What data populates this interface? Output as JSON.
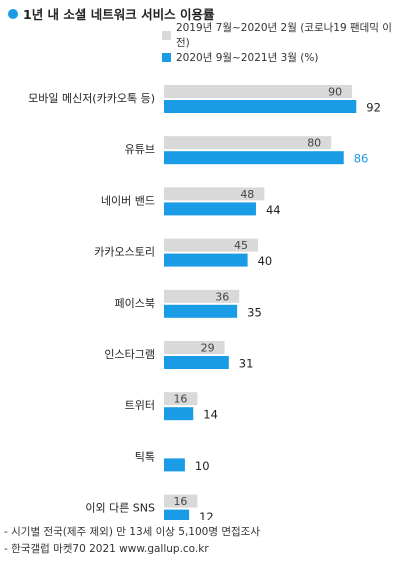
{
  "title": "1년 내 소셜 네트워크 서비스 이용률",
  "colors": {
    "accent": "#1a9be6",
    "previous": "#d9d9d9",
    "current": "#1a9be6",
    "current_label": "#1a9be6"
  },
  "chart_data": {
    "type": "bar",
    "orientation": "horizontal",
    "title": "1년 내 소셜 네트워크 서비스 이용률",
    "categories": [
      "모바일 메신저(카카오톡 등)",
      "유튜브",
      "네이버 밴드",
      "카카오스토리",
      "페이스북",
      "인스타그램",
      "트위터",
      "틱톡",
      "이외 다른 SNS"
    ],
    "series": [
      {
        "name": "2019년 7월~2020년 2월 (코로나19 팬데믹 이전)",
        "values": [
          90,
          80,
          48,
          45,
          36,
          29,
          16,
          null,
          16
        ]
      },
      {
        "name": "2020년 9월~2021년 3월 (%)",
        "values": [
          92,
          86,
          44,
          40,
          35,
          31,
          14,
          10,
          12
        ]
      }
    ],
    "highlight": {
      "series": 1,
      "category": 1
    },
    "xlim": [
      0,
      100
    ],
    "legend_position": "top-right",
    "grid": false
  },
  "footer": {
    "note1": "- 시기별 전국(제주 제외) 만 13세 이상 5,100명 면접조사",
    "note2": "- 한국갤럽 마켓70 2021 www.gallup.co.kr"
  }
}
